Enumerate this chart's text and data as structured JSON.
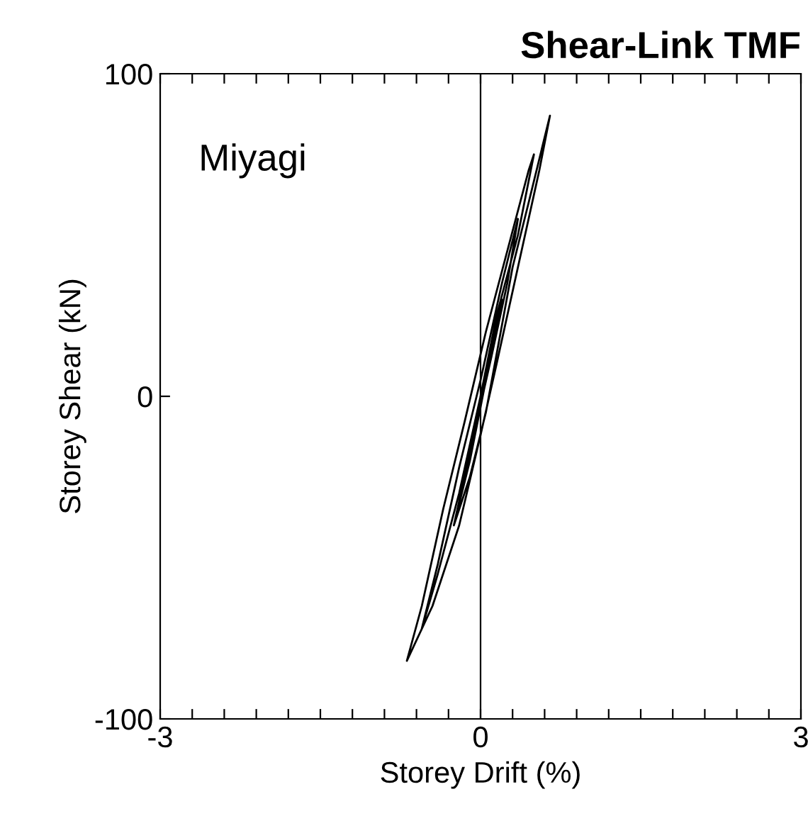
{
  "chart_data": {
    "type": "line",
    "title": "Shear-Link TMF",
    "xlabel": "Storey Drift (%)",
    "ylabel": "Storey Shear (kN)",
    "annotations": [
      "Miyagi"
    ],
    "series": [
      {
        "color": "#000000",
        "x": [
          0,
          0.1,
          0.2,
          0.05,
          -0.1,
          -0.25,
          -0.1,
          0.05,
          0.3,
          0.45,
          0.65,
          0.55,
          0.35,
          0.15,
          0,
          -0.2,
          -0.45,
          -0.69,
          -0.55,
          -0.35,
          -0.15,
          0.05,
          0.25,
          0.45,
          0.5,
          0.35,
          0.15,
          0,
          -0.2,
          -0.4,
          -0.55,
          -0.4,
          -0.2,
          0,
          0.2,
          0.35,
          0.25,
          0.1,
          -0.05,
          -0.25,
          -0.15,
          0.02
        ],
        "values": [
          0,
          15,
          30,
          5,
          -20,
          -40,
          -25,
          -5,
          40,
          60,
          87,
          70,
          40,
          10,
          -12,
          -40,
          -65,
          -82,
          -65,
          -35,
          -8,
          20,
          45,
          70,
          75,
          50,
          25,
          0,
          -30,
          -55,
          -72,
          -52,
          -22,
          5,
          35,
          55,
          35,
          12,
          -10,
          -40,
          -25,
          2
        ]
      }
    ],
    "xlim": [
      -3,
      3
    ],
    "ylim": [
      -100,
      100
    ],
    "xticks": [
      -3,
      {
        "value": -2.7,
        "label": null
      },
      {
        "value": -2.4,
        "label": null
      },
      {
        "value": -2.1,
        "label": null
      },
      {
        "value": -1.8,
        "label": null
      },
      {
        "value": -1.5,
        "label": null
      },
      {
        "value": -1.2,
        "label": null
      },
      {
        "value": -0.9,
        "label": null
      },
      {
        "value": -0.6,
        "label": null
      },
      {
        "value": -0.3,
        "label": null
      },
      0,
      {
        "value": 0.3,
        "label": null
      },
      {
        "value": 0.6,
        "label": null
      },
      {
        "value": 0.9,
        "label": null
      },
      {
        "value": 1.2,
        "label": null
      },
      {
        "value": 1.5,
        "label": null
      },
      {
        "value": 1.8,
        "label": null
      },
      {
        "value": 2.1,
        "label": null
      },
      {
        "value": 2.4,
        "label": null
      },
      {
        "value": 2.7,
        "label": null
      },
      3
    ],
    "yticks": [
      -100,
      0,
      100
    ],
    "ref_lines": [
      {
        "axis": "x",
        "value": 0,
        "color": "#000000"
      }
    ],
    "grid": false,
    "legend": false,
    "marker": "none",
    "line_style": "solid"
  }
}
